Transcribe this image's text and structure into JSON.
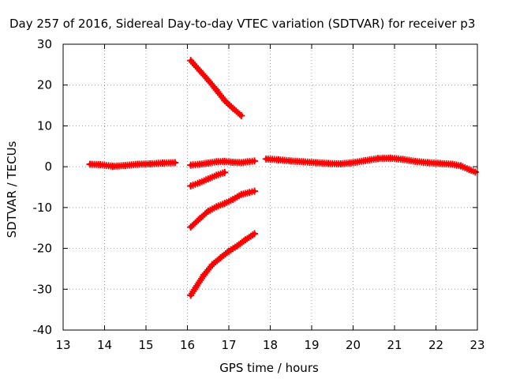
{
  "chart_data": {
    "type": "scatter",
    "title": "Day 257 of 2016, Sidereal Day-to-day VTEC variation (SDTVAR) for receiver p3",
    "xlabel": "GPS time / hours",
    "ylabel": "SDTVAR / TECUs",
    "xlim": [
      13,
      23
    ],
    "ylim": [
      -40,
      30
    ],
    "x_ticks": [
      "13",
      "14",
      "15",
      "16",
      "17",
      "18",
      "19",
      "20",
      "21",
      "22",
      "23"
    ],
    "y_ticks": [
      "30",
      "20",
      "10",
      "0",
      "-10",
      "-20",
      "-30",
      "-40"
    ],
    "grid": true,
    "legend": "none",
    "marker": "+",
    "colors": {
      "series": "#ff0000",
      "grid": "#a0a0a0",
      "axis": "#000000"
    },
    "series": [
      {
        "points": [
          [
            13.65,
            0.6
          ],
          [
            13.9,
            0.5
          ],
          [
            14.2,
            0.1
          ],
          [
            14.5,
            0.3
          ],
          [
            14.8,
            0.6
          ],
          [
            15.1,
            0.7
          ],
          [
            15.4,
            0.9
          ],
          [
            15.7,
            1.0
          ]
        ]
      },
      {
        "points": [
          [
            16.08,
            0.4
          ],
          [
            16.3,
            0.6
          ],
          [
            16.5,
            0.9
          ],
          [
            16.7,
            1.2
          ],
          [
            16.9,
            1.3
          ],
          [
            17.1,
            1.1
          ],
          [
            17.3,
            1.0
          ],
          [
            17.45,
            1.2
          ],
          [
            17.62,
            1.4
          ]
        ]
      },
      {
        "points": [
          [
            17.9,
            1.9
          ],
          [
            18.2,
            1.7
          ],
          [
            18.5,
            1.4
          ],
          [
            18.8,
            1.2
          ],
          [
            19.1,
            1.0
          ],
          [
            19.4,
            0.8
          ],
          [
            19.7,
            0.7
          ],
          [
            20.0,
            1.0
          ],
          [
            20.3,
            1.5
          ],
          [
            20.6,
            2.0
          ],
          [
            20.9,
            2.1
          ],
          [
            21.2,
            1.8
          ],
          [
            21.5,
            1.3
          ],
          [
            21.8,
            1.0
          ],
          [
            22.1,
            0.8
          ],
          [
            22.4,
            0.6
          ],
          [
            22.6,
            0.2
          ],
          [
            22.8,
            -0.7
          ],
          [
            22.95,
            -1.3
          ]
        ]
      },
      {
        "points": [
          [
            16.08,
            26.0
          ],
          [
            16.3,
            23.5
          ],
          [
            16.5,
            21.2
          ],
          [
            16.7,
            18.8
          ],
          [
            16.9,
            16.2
          ],
          [
            17.1,
            14.3
          ],
          [
            17.3,
            12.5
          ]
        ]
      },
      {
        "points": [
          [
            16.08,
            -4.7
          ],
          [
            16.3,
            -3.9
          ],
          [
            16.5,
            -3.0
          ],
          [
            16.7,
            -2.1
          ],
          [
            16.9,
            -1.4
          ]
        ]
      },
      {
        "points": [
          [
            16.08,
            -14.8
          ],
          [
            16.3,
            -12.7
          ],
          [
            16.5,
            -10.9
          ],
          [
            16.7,
            -9.8
          ],
          [
            16.9,
            -9.0
          ],
          [
            17.1,
            -8.0
          ],
          [
            17.3,
            -6.8
          ],
          [
            17.5,
            -6.3
          ],
          [
            17.62,
            -6.0
          ]
        ]
      },
      {
        "points": [
          [
            16.08,
            -31.5
          ],
          [
            16.2,
            -29.6
          ],
          [
            16.4,
            -26.5
          ],
          [
            16.6,
            -24.0
          ],
          [
            16.8,
            -22.3
          ],
          [
            17.0,
            -20.7
          ],
          [
            17.2,
            -19.4
          ],
          [
            17.4,
            -17.9
          ],
          [
            17.62,
            -16.4
          ]
        ]
      }
    ]
  }
}
